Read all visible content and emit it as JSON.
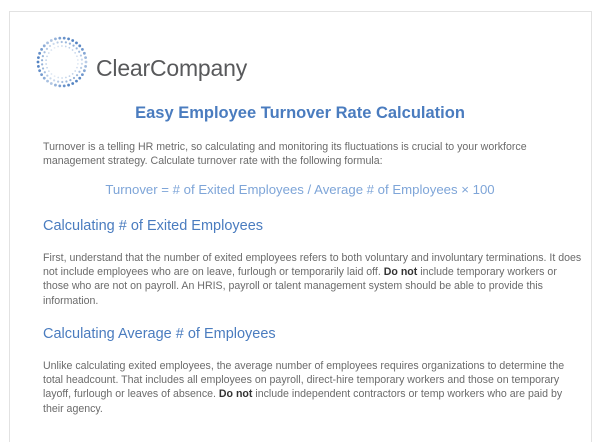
{
  "logo": {
    "name": "ClearCompany",
    "accent": "#4a7cbf"
  },
  "title": "Easy Employee Turnover Rate Calculation",
  "intro": "Turnover is a telling HR metric, so calculating and monitoring its fluctuations is crucial to your workforce management strategy. Calculate turnover rate with the following formula:",
  "formula": "Turnover = # of Exited Employees / Average # of Employees × 100",
  "sections": [
    {
      "heading": "Calculating # of Exited Employees",
      "text_before": "First, understand that the number of exited employees refers to both voluntary and involuntary terminations. It does not include employees who are on leave, furlough or temporarily laid off. ",
      "bold": "Do not",
      "text_after": " include temporary workers or those who are not on payroll. An HRIS, payroll or talent management system should be able to provide this information."
    },
    {
      "heading": "Calculating Average # of Employees",
      "text_before": "Unlike calculating exited employees, the average number of employees requires organizations to determine the total headcount. That includes all employees on payroll, direct-hire temporary workers and those on temporary layoff, furlough or leaves of absence. ",
      "bold": "Do not",
      "text_after": " include independent contractors or temp workers who are paid by their agency."
    }
  ]
}
